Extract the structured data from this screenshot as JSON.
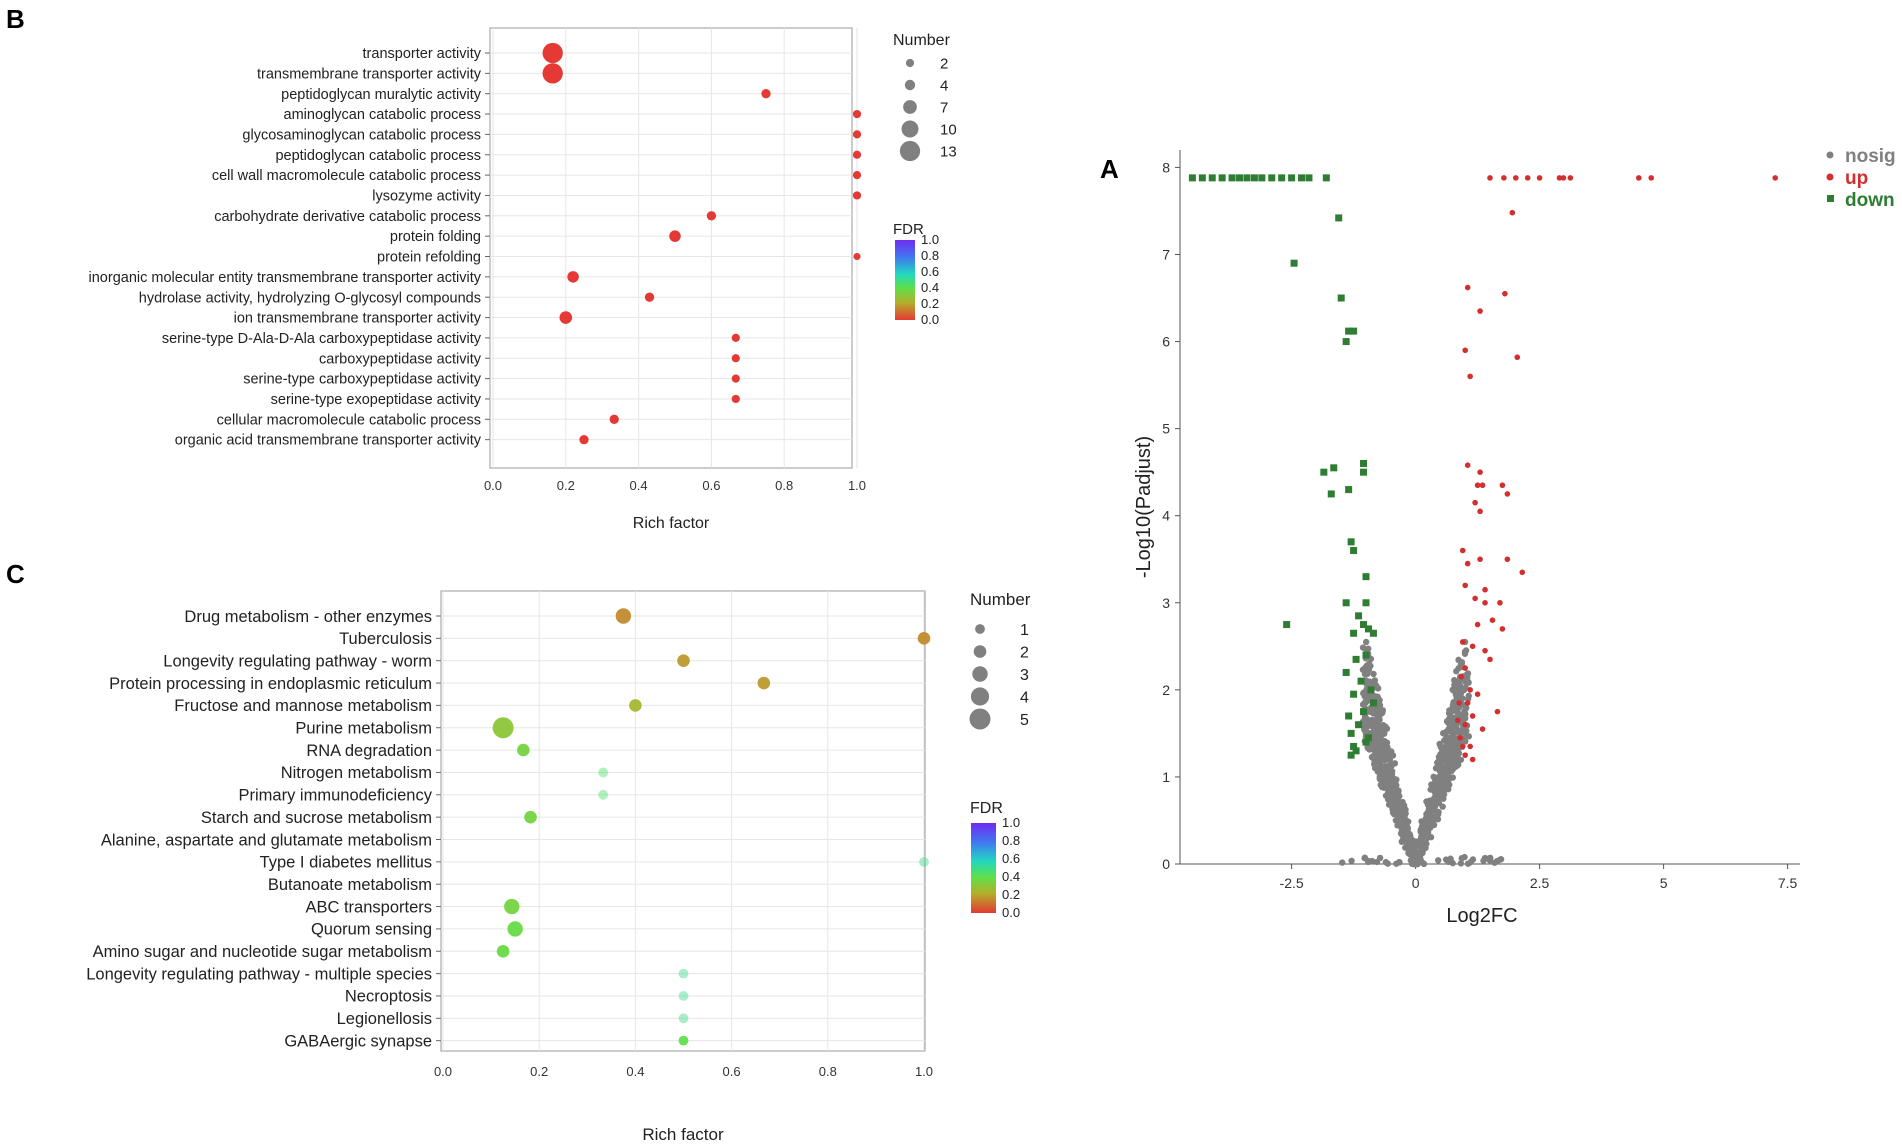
{
  "colors": {
    "up": "#d32f2f",
    "down": "#2e7d32",
    "nosig": "#808080",
    "dotB": "#e53935",
    "frame": "#999999",
    "grid": "#e6e6e6"
  },
  "chart_data": [
    {
      "panel": "B",
      "type": "scatter",
      "title": "",
      "xlabel": "Rich factor",
      "xlim": [
        0,
        1
      ],
      "xticks": [
        "0.0",
        "0.2",
        "0.4",
        "0.6",
        "0.8",
        "1.0"
      ],
      "categories": [
        "transporter activity",
        "transmembrane transporter activity",
        "peptidoglycan muralytic activity",
        "aminoglycan catabolic process",
        "glycosaminoglycan catabolic process",
        "peptidoglycan catabolic process",
        "cell wall macromolecule catabolic process",
        "lysozyme activity",
        "carbohydrate derivative catabolic process",
        "protein folding",
        "protein refolding",
        "inorganic molecular entity transmembrane transporter activity",
        "hydrolase activity, hydrolyzing O-glycosyl compounds",
        "ion transmembrane transporter activity",
        "serine-type D-Ala-D-Ala carboxypeptidase activity",
        "carboxypeptidase activity",
        "serine-type carboxypeptidase activity",
        "serine-type exopeptidase activity",
        "cellular macromolecule catabolic process",
        "organic acid transmembrane transporter activity"
      ],
      "rich_factor": [
        0.164,
        0.164,
        0.75,
        1.0,
        1.0,
        1.0,
        1.0,
        1.0,
        0.6,
        0.5,
        1.0,
        0.22,
        0.43,
        0.2,
        0.667,
        0.667,
        0.667,
        0.667,
        0.333,
        0.25
      ],
      "number": [
        13,
        13,
        3,
        2,
        2,
        2,
        2,
        2,
        3,
        5,
        1,
        5,
        3,
        6,
        2,
        2,
        2,
        2,
        3,
        3
      ],
      "fdr": [
        0.0,
        0.0,
        0.02,
        0.02,
        0.02,
        0.02,
        0.02,
        0.02,
        0.02,
        0.02,
        0.03,
        0.02,
        0.02,
        0.02,
        0.02,
        0.02,
        0.02,
        0.02,
        0.02,
        0.02
      ],
      "legend_size": {
        "title": "Number",
        "labels": [
          "2",
          "4",
          "7",
          "10",
          "13"
        ],
        "values": [
          2,
          4,
          7,
          10,
          13
        ]
      },
      "legend_color": {
        "title": "FDR",
        "ticks": [
          "1.0",
          "0.8",
          "0.6",
          "0.4",
          "0.2",
          "0.0"
        ]
      }
    },
    {
      "panel": "C",
      "type": "scatter",
      "title": "",
      "xlabel": "Rich factor",
      "xlim": [
        0,
        1
      ],
      "xticks": [
        "0.0",
        "0.2",
        "0.4",
        "0.6",
        "0.8",
        "1.0"
      ],
      "categories": [
        "Drug metabolism - other enzymes",
        "Tuberculosis",
        "Longevity regulating pathway - worm",
        "Protein processing in endoplasmic reticulum",
        "Fructose and mannose metabolism",
        "Purine metabolism",
        "RNA degradation",
        "Nitrogen metabolism",
        "Primary immunodeficiency",
        "Starch and sucrose metabolism",
        "Alanine, aspartate and glutamate metabolism",
        "Type I diabetes mellitus",
        "Butanoate metabolism",
        "ABC transporters",
        "Quorum sensing",
        "Amino sugar and nucleotide sugar metabolism",
        "Longevity regulating pathway - multiple species",
        "Necroptosis",
        "Legionellosis",
        "GABAergic synapse"
      ],
      "rich_factor": [
        0.375,
        1.0,
        0.5,
        0.667,
        0.4,
        0.125,
        0.167,
        0.333,
        0.333,
        0.182,
        0.0,
        1.0,
        0.0,
        0.143,
        0.15,
        0.125,
        0.5,
        0.5,
        0.5,
        0.5
      ],
      "number": [
        3,
        2,
        2,
        2,
        2,
        5,
        2,
        1,
        1,
        2,
        0,
        1,
        0,
        3,
        3,
        2,
        1,
        1,
        1,
        1
      ],
      "fdr": [
        0.15,
        0.15,
        0.18,
        0.18,
        0.25,
        0.3,
        0.35,
        0.45,
        0.45,
        0.35,
        0.5,
        0.5,
        0.5,
        0.35,
        0.38,
        0.38,
        0.5,
        0.5,
        0.5,
        0.4
      ],
      "legend_size": {
        "title": "Number",
        "labels": [
          "1",
          "2",
          "3",
          "4",
          "5"
        ],
        "values": [
          1,
          2,
          3,
          4,
          5
        ]
      },
      "legend_color": {
        "title": "FDR",
        "ticks": [
          "1.0",
          "0.8",
          "0.6",
          "0.4",
          "0.2",
          "0.0"
        ]
      }
    },
    {
      "panel": "A",
      "type": "scatter",
      "title": "",
      "xlabel": "Log2FC",
      "ylabel": "-Log10(Padjust)",
      "xlim": [
        -4.75,
        7.75
      ],
      "ylim": [
        0,
        8.2
      ],
      "xticks": [
        "-2.5",
        "0",
        "2.5",
        "5",
        "7.5"
      ],
      "xtick_values": [
        -2.5,
        0,
        2.5,
        5,
        7.5
      ],
      "yticks": [
        "0",
        "1",
        "2",
        "3",
        "4",
        "5",
        "6",
        "7",
        "8"
      ],
      "legend": [
        "nosig",
        "up",
        "down"
      ],
      "up_points": [
        [
          1.5,
          7.88
        ],
        [
          1.78,
          7.88
        ],
        [
          2.02,
          7.88
        ],
        [
          2.26,
          7.88
        ],
        [
          2.5,
          7.88
        ],
        [
          2.9,
          7.88
        ],
        [
          2.98,
          7.88
        ],
        [
          3.12,
          7.88
        ],
        [
          4.5,
          7.88
        ],
        [
          4.75,
          7.88
        ],
        [
          7.25,
          7.88
        ],
        [
          1.95,
          7.48
        ],
        [
          1.05,
          6.62
        ],
        [
          1.8,
          6.55
        ],
        [
          1.3,
          6.35
        ],
        [
          1.0,
          5.9
        ],
        [
          2.05,
          5.82
        ],
        [
          1.1,
          5.6
        ],
        [
          1.05,
          4.58
        ],
        [
          1.3,
          4.5
        ],
        [
          1.25,
          4.35
        ],
        [
          1.35,
          4.35
        ],
        [
          1.75,
          4.35
        ],
        [
          1.85,
          4.25
        ],
        [
          1.2,
          4.15
        ],
        [
          1.3,
          4.05
        ],
        [
          0.95,
          3.6
        ],
        [
          1.05,
          3.45
        ],
        [
          1.3,
          3.5
        ],
        [
          1.85,
          3.5
        ],
        [
          2.15,
          3.35
        ],
        [
          1.0,
          3.2
        ],
        [
          1.4,
          3.15
        ],
        [
          1.2,
          3.05
        ],
        [
          1.4,
          3.0
        ],
        [
          1.7,
          3.0
        ],
        [
          1.25,
          2.75
        ],
        [
          1.55,
          2.8
        ],
        [
          1.75,
          2.7
        ],
        [
          0.95,
          2.55
        ],
        [
          1.15,
          2.5
        ],
        [
          1.4,
          2.45
        ],
        [
          1.5,
          2.35
        ],
        [
          1.0,
          2.25
        ],
        [
          0.92,
          2.15
        ],
        [
          1.1,
          2.0
        ],
        [
          1.25,
          1.95
        ],
        [
          0.88,
          1.85
        ],
        [
          1.05,
          1.85
        ],
        [
          1.15,
          1.7
        ],
        [
          1.65,
          1.75
        ],
        [
          0.85,
          1.65
        ],
        [
          1.0,
          1.6
        ],
        [
          1.35,
          1.55
        ],
        [
          0.9,
          1.45
        ],
        [
          0.95,
          1.35
        ],
        [
          1.1,
          1.35
        ],
        [
          1.0,
          1.25
        ],
        [
          1.15,
          1.2
        ]
      ],
      "down_points": [
        [
          -4.5,
          7.88
        ],
        [
          -4.3,
          7.88
        ],
        [
          -4.1,
          7.88
        ],
        [
          -3.9,
          7.88
        ],
        [
          -3.7,
          7.88
        ],
        [
          -3.55,
          7.88
        ],
        [
          -3.4,
          7.88
        ],
        [
          -3.25,
          7.88
        ],
        [
          -3.1,
          7.88
        ],
        [
          -2.9,
          7.88
        ],
        [
          -2.7,
          7.88
        ],
        [
          -2.5,
          7.88
        ],
        [
          -2.3,
          7.88
        ],
        [
          -2.15,
          7.88
        ],
        [
          -1.8,
          7.88
        ],
        [
          -1.55,
          7.42
        ],
        [
          -2.45,
          6.9
        ],
        [
          -1.5,
          6.5
        ],
        [
          -1.25,
          6.12
        ],
        [
          -1.35,
          6.12
        ],
        [
          -1.4,
          6.0
        ],
        [
          -1.65,
          4.55
        ],
        [
          -1.85,
          4.5
        ],
        [
          -1.05,
          4.6
        ],
        [
          -1.05,
          4.5
        ],
        [
          -1.35,
          4.3
        ],
        [
          -1.7,
          4.25
        ],
        [
          -1.3,
          3.7
        ],
        [
          -1.25,
          3.6
        ],
        [
          -1.0,
          3.3
        ],
        [
          -1.4,
          3.0
        ],
        [
          -1.0,
          3.0
        ],
        [
          -1.15,
          2.85
        ],
        [
          -1.05,
          2.75
        ],
        [
          -1.25,
          2.65
        ],
        [
          -0.95,
          2.7
        ],
        [
          -0.85,
          2.65
        ],
        [
          -2.6,
          2.75
        ],
        [
          -1.0,
          2.4
        ],
        [
          -1.2,
          2.35
        ],
        [
          -1.4,
          2.2
        ],
        [
          -1.1,
          2.1
        ],
        [
          -0.9,
          2.0
        ],
        [
          -1.25,
          1.95
        ],
        [
          -0.85,
          1.85
        ],
        [
          -1.05,
          1.75
        ],
        [
          -1.35,
          1.7
        ],
        [
          -1.15,
          1.6
        ],
        [
          -1.3,
          1.5
        ],
        [
          -0.95,
          1.45
        ],
        [
          -1.0,
          1.4
        ],
        [
          -1.25,
          1.35
        ],
        [
          -1.2,
          1.3
        ],
        [
          -1.3,
          1.25
        ]
      ]
    }
  ]
}
